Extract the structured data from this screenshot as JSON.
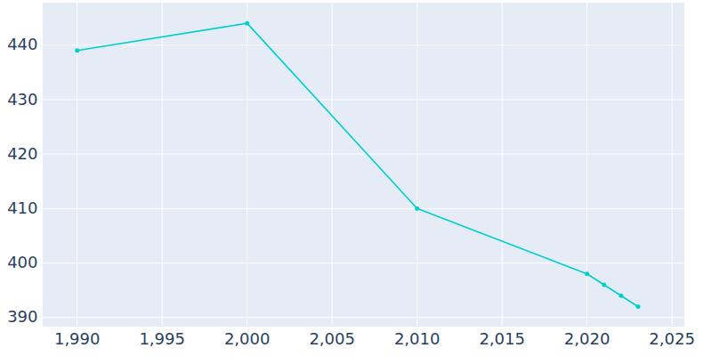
{
  "chart_data": {
    "type": "line",
    "x": [
      1990,
      2000,
      2010,
      2020,
      2021,
      2022,
      2023
    ],
    "values": [
      439,
      444,
      410,
      398,
      396,
      394,
      392
    ],
    "color": "#00cfcf",
    "marker": "circle",
    "xlim": [
      1988,
      2025.7
    ],
    "xticks": [
      1990,
      1995,
      2000,
      2005,
      2010,
      2015,
      2020,
      2025
    ],
    "ylim": [
      388.4,
      447.7
    ],
    "yticks": [
      390,
      400,
      410,
      420,
      430,
      440
    ],
    "grid": true
  }
}
